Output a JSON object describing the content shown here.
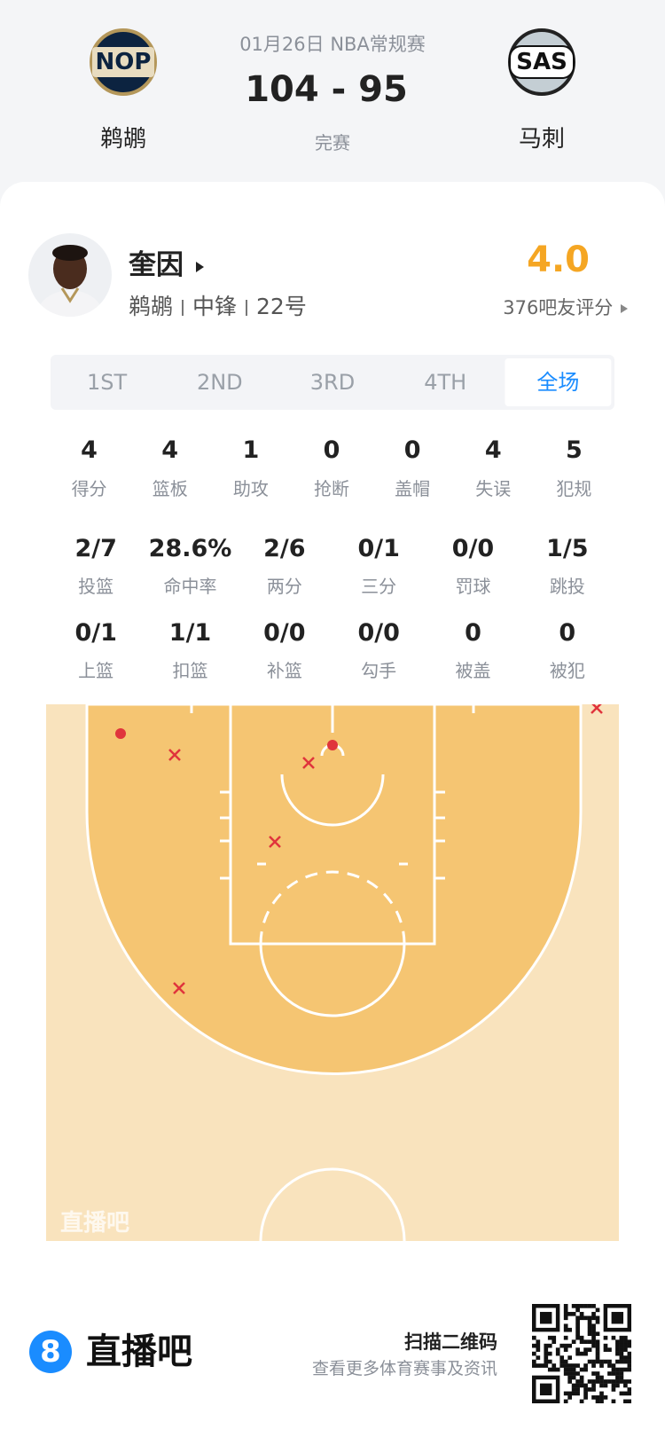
{
  "header": {
    "date_league": "01月26日 NBA常规赛",
    "score": "104 - 95",
    "status": "完赛",
    "home": {
      "logo": "NOP",
      "name": "鹈鹕"
    },
    "away": {
      "logo": "SAS",
      "name": "马刺"
    }
  },
  "player": {
    "name": "奎因",
    "team": "鹈鹕",
    "position": "中锋",
    "number": "22号",
    "rating": "4.0",
    "rating_label": "376吧友评分"
  },
  "tabs": {
    "items": [
      "1ST",
      "2ND",
      "3RD",
      "4TH",
      "全场"
    ],
    "active": 4
  },
  "stats": [
    [
      {
        "value": "4",
        "label": "得分"
      },
      {
        "value": "4",
        "label": "篮板"
      },
      {
        "value": "1",
        "label": "助攻"
      },
      {
        "value": "0",
        "label": "抢断"
      },
      {
        "value": "0",
        "label": "盖帽"
      },
      {
        "value": "4",
        "label": "失误"
      },
      {
        "value": "5",
        "label": "犯规"
      }
    ],
    [
      {
        "value": "2/7",
        "label": "投篮"
      },
      {
        "value": "28.6%",
        "label": "命中率"
      },
      {
        "value": "2/6",
        "label": "两分"
      },
      {
        "value": "0/1",
        "label": "三分"
      },
      {
        "value": "0/0",
        "label": "罚球"
      },
      {
        "value": "1/5",
        "label": "跳投"
      }
    ],
    [
      {
        "value": "0/1",
        "label": "上篮"
      },
      {
        "value": "1/1",
        "label": "扣篮"
      },
      {
        "value": "0/0",
        "label": "补篮"
      },
      {
        "value": "0/0",
        "label": "勾手"
      },
      {
        "value": "0",
        "label": "被盖"
      },
      {
        "value": "0",
        "label": "被犯"
      }
    ]
  ],
  "court": {
    "watermark": "直播吧"
  },
  "footer": {
    "brand_icon": "8",
    "brand": "直播吧",
    "qr_title": "扫描二维码",
    "qr_subtitle": "查看更多体育赛事及资讯"
  }
}
